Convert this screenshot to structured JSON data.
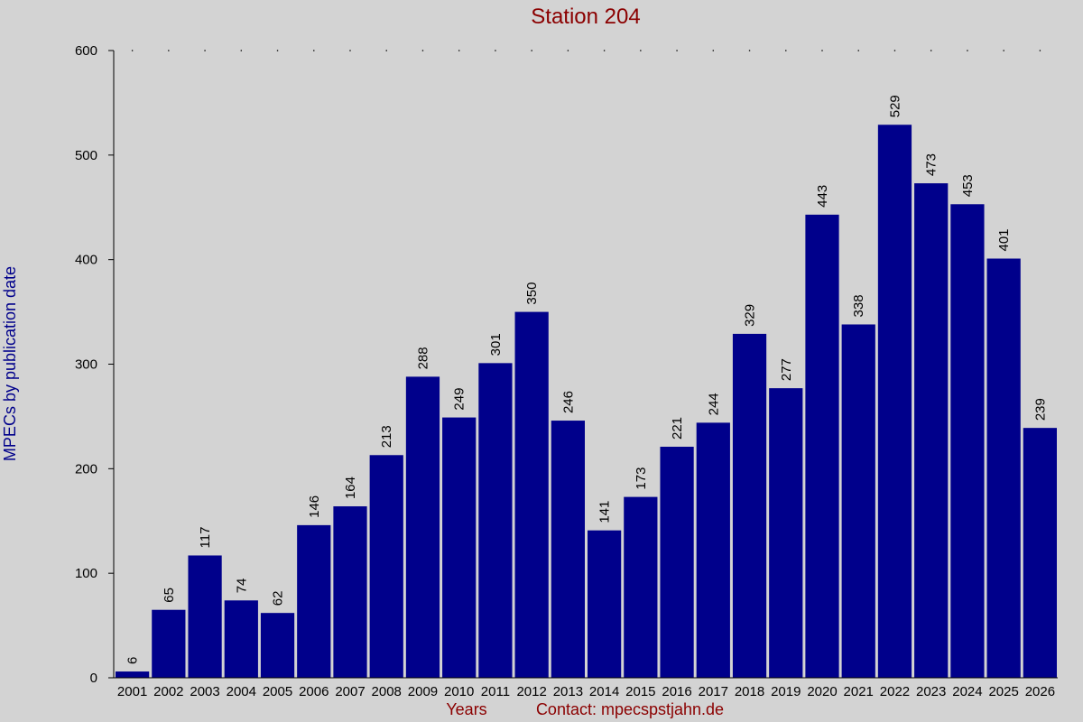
{
  "chart_data": {
    "type": "bar",
    "title": "Station 204",
    "ylabel": "MPECs by publication date",
    "xlabel": "Years",
    "contact": "Contact: mpecspstjahn.de",
    "categories": [
      "2001",
      "2002",
      "2003",
      "2004",
      "2005",
      "2006",
      "2007",
      "2008",
      "2009",
      "2010",
      "2011",
      "2012",
      "2013",
      "2014",
      "2015",
      "2016",
      "2017",
      "2018",
      "2019",
      "2020",
      "2021",
      "2022",
      "2023",
      "2024",
      "2025",
      "2026"
    ],
    "values": [
      6,
      65,
      117,
      74,
      62,
      146,
      164,
      213,
      288,
      249,
      301,
      350,
      246,
      141,
      173,
      221,
      244,
      329,
      277,
      443,
      338,
      529,
      473,
      453,
      401,
      239
    ],
    "ylim": [
      0,
      600
    ],
    "yticks": [
      0,
      100,
      200,
      300,
      400,
      500,
      600
    ],
    "grid": false,
    "data_labels": true,
    "colors": {
      "background": "#d3d3d3",
      "bar": "#00008b",
      "title": "#8b0000",
      "ylabel": "#00008b",
      "xlabel": "#8b0000",
      "axis": "#000000"
    }
  }
}
